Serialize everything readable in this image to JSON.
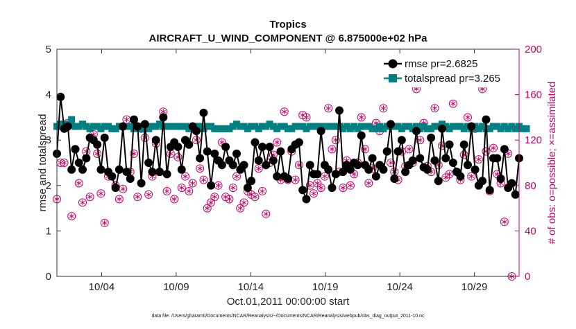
{
  "chart_data": {
    "type": "line",
    "title": "Tropics",
    "subtitle": "AIRCRAFT_U_WIND_COMPONENT @ 6.875000e+02 hPa",
    "xlabel": "Oct.01,2011 00:00:00 start",
    "ylabel_left": "rmse and totalspread",
    "ylabel_right": "# of obs: o=possible; ×=assimilated",
    "footer": "data file: /Users/gharamti/Documents/NCAR/Reanalysis/~/Documents/NCAR/Reanalysis/webpub/obs_diag_output_2011-10.nc",
    "xlim": [
      1,
      32
    ],
    "ylim_left": [
      0,
      5
    ],
    "ylim_right": [
      0,
      200
    ],
    "xticks": [
      4,
      9,
      14,
      19,
      24,
      29
    ],
    "xtick_labels": [
      "10/04",
      "10/09",
      "10/14",
      "10/19",
      "10/24",
      "10/29"
    ],
    "yticks_left": [
      "0",
      "1",
      "2",
      "3",
      "4",
      "5"
    ],
    "yticks_right": [
      "0",
      "40",
      "80",
      "120",
      "160",
      "200"
    ],
    "colors": {
      "rmse": "#000000",
      "spread": "#008080",
      "obs": "#cc0066",
      "axis_right": "#cc0066"
    },
    "legend": [
      {
        "name": "rmse pr=2.6825"
      },
      {
        "name": "totalspread pr=3.265"
      }
    ],
    "rmse": [
      2.7,
      3.95,
      3.25,
      3.3,
      2.35,
      2.8,
      2.5,
      2.35,
      2.6,
      3.05,
      3.0,
      2.9,
      2.35,
      3.05,
      2.3,
      2.2,
      1.95,
      2.35,
      3.3,
      2.3,
      2.15,
      3.45,
      3.3,
      2.05,
      3.35,
      2.5,
      2.3,
      3.0,
      2.3,
      3.5,
      2.25,
      2.85,
      2.95,
      2.85,
      2.35,
      3.0,
      2.9,
      3.3,
      3.2,
      2.6,
      3.6,
      2.75,
      2.0,
      2.7,
      2.55,
      2.45,
      2.85,
      2.55,
      2.45,
      2.7,
      2.35,
      2.45,
      1.95,
      2.1,
      2.95,
      2.55,
      2.85,
      2.45,
      2.85,
      2.55,
      2.2,
      2.75,
      2.2,
      2.15,
      2.8,
      2.9,
      2.95,
      1.9,
      1.7,
      2.45,
      2.25,
      2.25,
      3.2,
      2.45,
      2.35,
      1.95,
      2.25,
      3.65,
      2.3,
      2.45,
      2.35,
      2.5,
      2.45,
      3.1,
      2.45,
      2.35,
      2.6,
      2.2,
      2.45,
      2.35,
      2.75,
      3.35,
      2.15,
      2.75,
      3.0,
      2.3,
      2.45,
      2.55,
      3.2,
      2.6,
      2.4,
      2.35,
      3.05,
      2.55,
      2.1,
      3.25,
      2.6,
      2.9,
      2.5,
      2.3,
      2.2,
      2.9,
      2.45,
      3.3,
      2.35,
      2.0,
      2.1,
      3.45,
      1.9,
      2.6,
      2.6,
      2.15,
      2.8,
      1.95,
      2.05,
      1.8,
      2.6
    ],
    "spread": [
      3.3,
      3.35,
      3.35,
      3.35,
      3.45,
      3.3,
      3.3,
      3.35,
      3.3,
      3.25,
      3.3,
      3.3,
      3.25,
      3.3,
      3.3,
      3.25,
      3.25,
      3.3,
      3.3,
      3.3,
      3.3,
      3.25,
      3.3,
      3.25,
      3.3,
      3.25,
      3.3,
      3.3,
      3.35,
      3.3,
      3.3,
      3.3,
      3.3,
      3.3,
      3.3,
      3.3,
      3.25,
      3.3,
      3.3,
      3.3,
      3.25,
      3.3,
      3.3,
      3.25,
      3.25,
      3.25,
      3.25,
      3.25,
      3.3,
      3.35,
      3.3,
      3.3,
      3.25,
      3.3,
      3.3,
      3.25,
      3.3,
      3.3,
      3.35,
      3.3,
      3.25,
      3.3,
      3.3,
      3.25,
      3.25,
      3.3,
      3.3,
      3.3,
      3.25,
      3.3,
      3.3,
      3.3,
      3.3,
      3.3,
      3.3,
      3.3,
      3.3,
      3.3,
      3.25,
      3.3,
      3.25,
      3.3,
      3.25,
      3.3,
      3.3,
      3.3,
      3.25,
      3.25,
      3.3,
      3.25,
      3.3,
      3.3,
      3.3,
      3.3,
      3.25,
      3.3,
      3.3,
      3.25,
      3.3,
      3.25,
      3.3,
      3.25,
      3.25,
      3.3,
      3.3,
      3.35,
      3.3,
      3.25,
      3.3,
      3.3,
      3.3,
      3.25,
      3.3,
      3.25,
      3.3,
      3.25,
      3.3,
      3.25,
      3.25,
      3.3,
      3.3,
      3.25,
      3.3,
      3.25,
      3.3,
      3.25,
      3.3,
      3.25,
      3.25
    ],
    "obs_counts": [
      68,
      100,
      100,
      135,
      53,
      112,
      82,
      65,
      110,
      70,
      125,
      108,
      73,
      47,
      88,
      88,
      80,
      68,
      77,
      138,
      92,
      108,
      70,
      130,
      122,
      72,
      88,
      117,
      92,
      145,
      75,
      108,
      68,
      105,
      78,
      88,
      75,
      82,
      120,
      95,
      85,
      60,
      65,
      70,
      80,
      118,
      70,
      68,
      78,
      88,
      60,
      65,
      75,
      72,
      70,
      95,
      75,
      55,
      100,
      107,
      118,
      85,
      145,
      85,
      110,
      85,
      98,
      142,
      140,
      80,
      73,
      82,
      78,
      88,
      148,
      112,
      120,
      92,
      78,
      102,
      80,
      90,
      100,
      140,
      112,
      82,
      95,
      135,
      128,
      148,
      110,
      100,
      92,
      85,
      110,
      97,
      112,
      100,
      165,
      120,
      135,
      97,
      92,
      148,
      98,
      115,
      87,
      90,
      152,
      92,
      85,
      107,
      140,
      88,
      130,
      103,
      165,
      110,
      75,
      113,
      90,
      82,
      48,
      108,
      0
    ]
  }
}
